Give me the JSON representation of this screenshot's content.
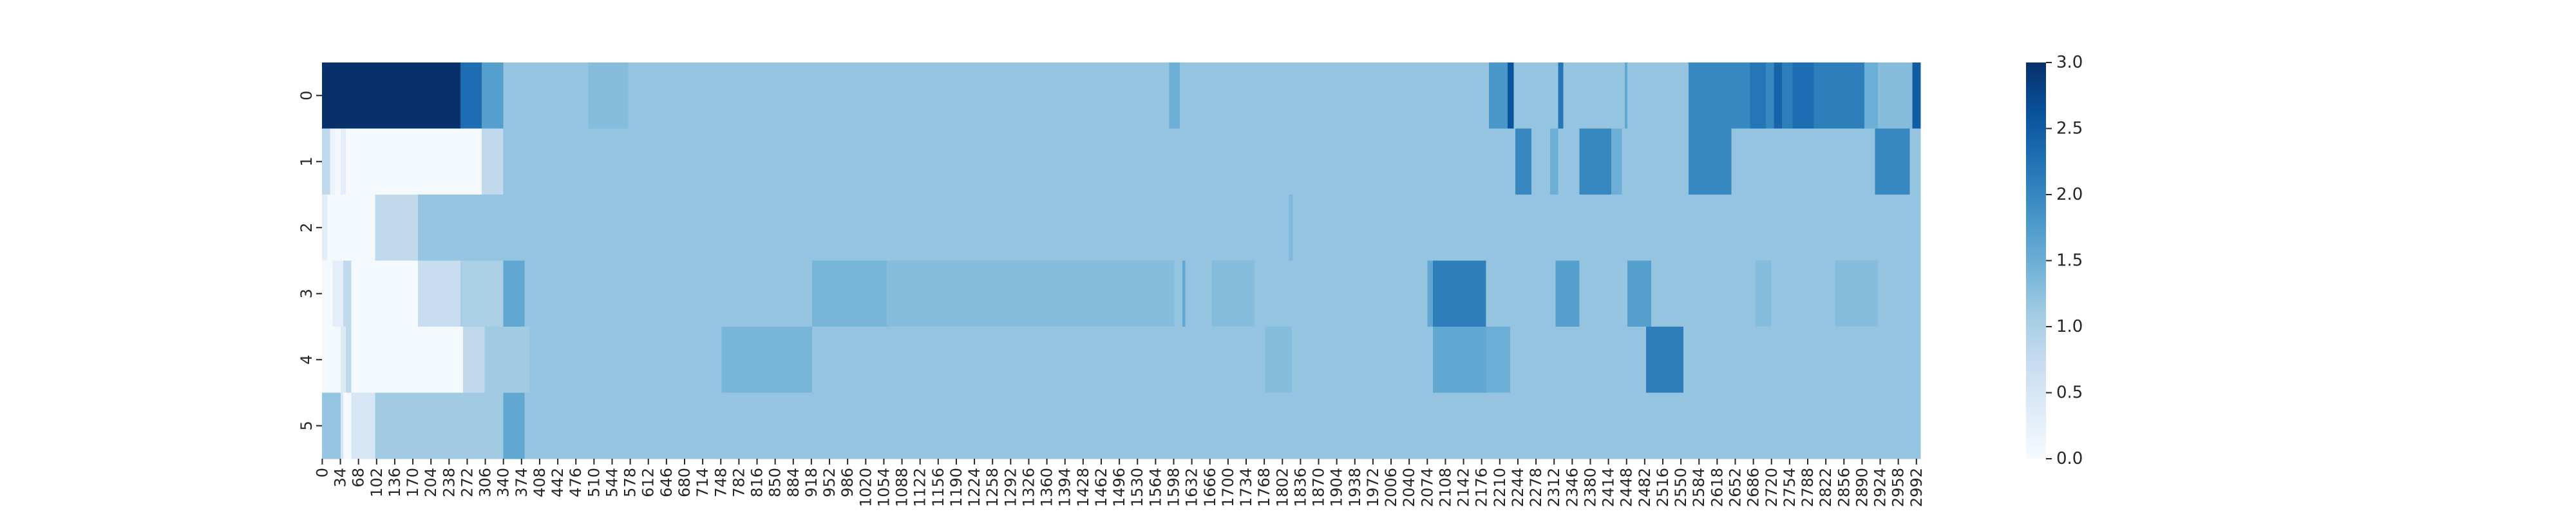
{
  "chart_data": {
    "type": "heatmap",
    "title": "",
    "xlabel": "",
    "ylabel": "",
    "colormap": "Blues",
    "color_low": "#f7fbff",
    "color_high": "#08306b",
    "vmin": 0.0,
    "vmax": 3.0,
    "n_columns": 3000,
    "row_labels": [
      "0",
      "1",
      "2",
      "3",
      "4",
      "5"
    ],
    "x_tick_labels": [
      "0",
      "34",
      "68",
      "102",
      "136",
      "170",
      "204",
      "238",
      "272",
      "306",
      "340",
      "374",
      "408",
      "442",
      "476",
      "510",
      "544",
      "578",
      "612",
      "646",
      "680",
      "714",
      "748",
      "782",
      "816",
      "850",
      "884",
      "918",
      "952",
      "986",
      "1020",
      "1054",
      "1088",
      "1122",
      "1156",
      "1190",
      "1224",
      "1258",
      "1292",
      "1326",
      "1360",
      "1394",
      "1428",
      "1462",
      "1496",
      "1530",
      "1564",
      "1598",
      "1632",
      "1666",
      "1700",
      "1734",
      "1768",
      "1802",
      "1836",
      "1870",
      "1904",
      "1938",
      "1972",
      "2006",
      "2040",
      "2074",
      "2108",
      "2142",
      "2176",
      "2210",
      "2244",
      "2278",
      "2312",
      "2346",
      "2380",
      "2414",
      "2448",
      "2482",
      "2516",
      "2550",
      "2584",
      "2618",
      "2652",
      "2686",
      "2720",
      "2754",
      "2788",
      "2822",
      "2856",
      "2890",
      "2924",
      "2958",
      "2992"
    ],
    "colorbar_ticks": [
      "0.0",
      "0.5",
      "1.0",
      "1.5",
      "2.0",
      "2.5",
      "3.0"
    ],
    "rows": [
      [
        [
          0,
          260,
          3.0
        ],
        [
          260,
          300,
          2.3
        ],
        [
          300,
          340,
          1.7
        ],
        [
          340,
          500,
          1.2
        ],
        [
          500,
          575,
          1.3
        ],
        [
          575,
          1590,
          1.2
        ],
        [
          1590,
          1610,
          1.5
        ],
        [
          1610,
          2190,
          1.2
        ],
        [
          2190,
          2225,
          1.8
        ],
        [
          2225,
          2237,
          2.6
        ],
        [
          2237,
          2320,
          1.2
        ],
        [
          2320,
          2330,
          2.2
        ],
        [
          2330,
          2445,
          1.2
        ],
        [
          2445,
          2450,
          1.6
        ],
        [
          2450,
          2565,
          1.2
        ],
        [
          2565,
          2680,
          2.0
        ],
        [
          2680,
          2710,
          2.2
        ],
        [
          2710,
          2725,
          2.0
        ],
        [
          2725,
          2740,
          2.4
        ],
        [
          2740,
          2760,
          2.1
        ],
        [
          2760,
          2800,
          2.3
        ],
        [
          2800,
          2895,
          2.1
        ],
        [
          2895,
          2920,
          1.5
        ],
        [
          2920,
          2985,
          1.3
        ],
        [
          2985,
          3000,
          2.5
        ]
      ],
      [
        [
          0,
          15,
          0.8
        ],
        [
          15,
          25,
          0.2
        ],
        [
          25,
          35,
          0.05
        ],
        [
          35,
          45,
          0.3
        ],
        [
          45,
          300,
          0.05
        ],
        [
          300,
          340,
          0.8
        ],
        [
          340,
          2240,
          1.2
        ],
        [
          2240,
          2270,
          2.0
        ],
        [
          2270,
          2305,
          1.2
        ],
        [
          2305,
          2320,
          1.5
        ],
        [
          2320,
          2360,
          1.2
        ],
        [
          2360,
          2420,
          2.0
        ],
        [
          2420,
          2440,
          1.5
        ],
        [
          2440,
          2565,
          1.2
        ],
        [
          2565,
          2645,
          2.0
        ],
        [
          2645,
          2915,
          1.2
        ],
        [
          2915,
          2980,
          2.0
        ],
        [
          2980,
          3000,
          1.2
        ]
      ],
      [
        [
          0,
          10,
          0.3
        ],
        [
          10,
          25,
          0.05
        ],
        [
          25,
          100,
          0.05
        ],
        [
          100,
          180,
          0.8
        ],
        [
          180,
          1815,
          1.2
        ],
        [
          1815,
          1822,
          1.35
        ],
        [
          1822,
          3000,
          1.2
        ]
      ],
      [
        [
          0,
          20,
          0.05
        ],
        [
          20,
          40,
          0.3
        ],
        [
          40,
          55,
          0.8
        ],
        [
          55,
          180,
          0.05
        ],
        [
          180,
          260,
          0.7
        ],
        [
          260,
          340,
          1.0
        ],
        [
          340,
          380,
          1.6
        ],
        [
          380,
          920,
          1.2
        ],
        [
          920,
          1060,
          1.4
        ],
        [
          1060,
          1600,
          1.3
        ],
        [
          1600,
          1615,
          1.2
        ],
        [
          1615,
          1620,
          1.6
        ],
        [
          1620,
          1670,
          1.2
        ],
        [
          1670,
          1750,
          1.3
        ],
        [
          1750,
          2075,
          1.2
        ],
        [
          2075,
          2085,
          1.6
        ],
        [
          2085,
          2185,
          2.1
        ],
        [
          2185,
          2315,
          1.2
        ],
        [
          2315,
          2360,
          1.7
        ],
        [
          2360,
          2450,
          1.2
        ],
        [
          2450,
          2495,
          1.7
        ],
        [
          2495,
          2560,
          1.2
        ],
        [
          2560,
          2690,
          1.2
        ],
        [
          2690,
          2720,
          1.3
        ],
        [
          2720,
          2840,
          1.2
        ],
        [
          2840,
          2920,
          1.3
        ],
        [
          2920,
          3000,
          1.2
        ]
      ],
      [
        [
          0,
          35,
          0.05
        ],
        [
          35,
          45,
          0.4
        ],
        [
          45,
          55,
          0.8
        ],
        [
          55,
          265,
          0.05
        ],
        [
          265,
          305,
          0.8
        ],
        [
          305,
          390,
          1.1
        ],
        [
          390,
          750,
          1.2
        ],
        [
          750,
          920,
          1.4
        ],
        [
          920,
          1770,
          1.2
        ],
        [
          1770,
          1820,
          1.3
        ],
        [
          1820,
          2085,
          1.2
        ],
        [
          2085,
          2185,
          1.6
        ],
        [
          2185,
          2230,
          1.5
        ],
        [
          2230,
          2485,
          1.2
        ],
        [
          2485,
          2555,
          2.1
        ],
        [
          2555,
          3000,
          1.2
        ]
      ],
      [
        [
          0,
          35,
          1.2
        ],
        [
          35,
          40,
          0.5
        ],
        [
          40,
          55,
          0.05
        ],
        [
          55,
          100,
          0.5
        ],
        [
          100,
          340,
          1.1
        ],
        [
          340,
          380,
          1.6
        ],
        [
          380,
          3000,
          1.2
        ]
      ]
    ]
  }
}
